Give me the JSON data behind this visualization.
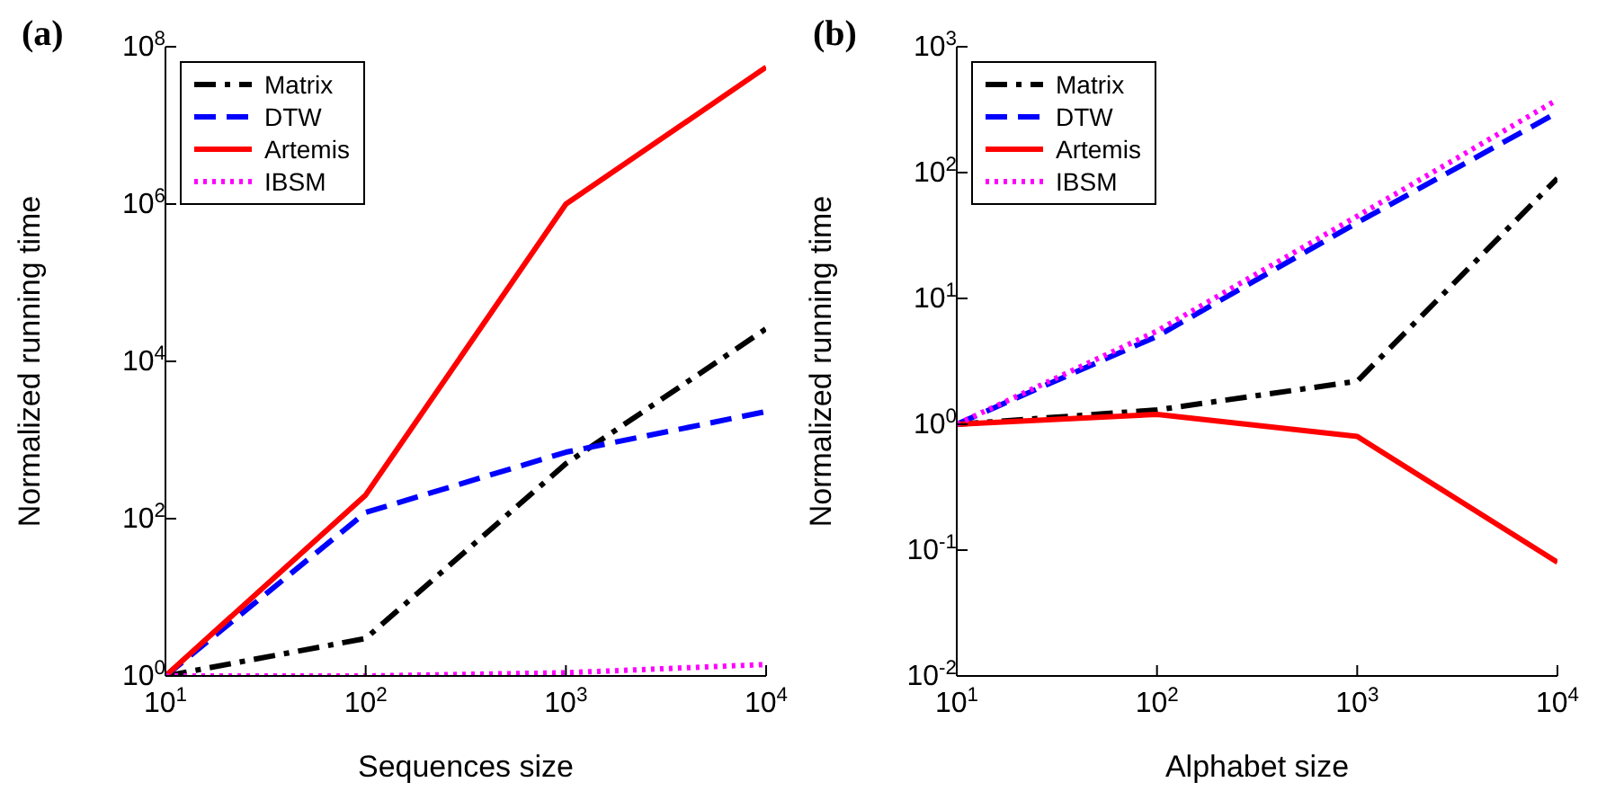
{
  "chart_data": [
    {
      "type": "line",
      "title": "(a)",
      "xlabel": "Sequences size",
      "ylabel": "Normalized running time",
      "log": "xy",
      "grid": false,
      "legend": "top left",
      "x": [
        10,
        100,
        1000,
        10000
      ],
      "xlim": [
        10,
        10000
      ],
      "xticks": [
        {
          "value": 10,
          "label": "10$^{1}$"
        },
        {
          "value": 100,
          "label": "10$^{2}$"
        },
        {
          "value": 1000,
          "label": "10$^{3}$"
        },
        {
          "value": 10000,
          "label": "10$^{4}$"
        }
      ],
      "ylim": [
        1,
        100000000
      ],
      "yticks": [
        {
          "value": 1,
          "label": "10$^{0}$"
        },
        {
          "value": 100,
          "label": "10$^{2}$"
        },
        {
          "value": 10000,
          "label": "10$^{4}$"
        },
        {
          "value": 1000000,
          "label": "10$^{6}$"
        },
        {
          "value": 100000000,
          "label": "10$^{8}$"
        }
      ],
      "series": [
        {
          "name": "Matrix",
          "color": "#000000",
          "line_style": "dashdot",
          "values": [
            1,
            3,
            500,
            26000
          ]
        },
        {
          "name": "DTW",
          "color": "#0000ff",
          "line_style": "dashed",
          "values": [
            1,
            120,
            700,
            2300
          ]
        },
        {
          "name": "Artemis",
          "color": "#ff0000",
          "line_style": "solid",
          "values": [
            1,
            200,
            1000000,
            55000000
          ]
        },
        {
          "name": "IBSM",
          "color": "#ff00ff",
          "line_style": "dotted",
          "values": [
            1,
            1,
            1.1,
            1.4
          ]
        }
      ]
    },
    {
      "type": "line",
      "title": "(b)",
      "xlabel": "Alphabet size",
      "ylabel": "Normalized running time",
      "log": "xy",
      "grid": false,
      "legend": "top left",
      "x": [
        10,
        100,
        1000,
        10000
      ],
      "xlim": [
        10,
        10000
      ],
      "xticks": [
        {
          "value": 10,
          "label": "10$^{1}$"
        },
        {
          "value": 100,
          "label": "10$^{2}$"
        },
        {
          "value": 1000,
          "label": "10$^{3}$"
        },
        {
          "value": 10000,
          "label": "10$^{4}$"
        }
      ],
      "ylim": [
        0.01,
        1000
      ],
      "yticks": [
        {
          "value": 0.01,
          "label": "10$^{-2}$"
        },
        {
          "value": 0.1,
          "label": "10$^{-1}$"
        },
        {
          "value": 1,
          "label": "10$^{0}$"
        },
        {
          "value": 10,
          "label": "10$^{1}$"
        },
        {
          "value": 100,
          "label": "10$^{2}$"
        },
        {
          "value": 1000,
          "label": "10$^{3}$"
        }
      ],
      "series": [
        {
          "name": "Matrix",
          "color": "#000000",
          "line_style": "dashdot",
          "values": [
            1,
            1.3,
            2.2,
            90
          ]
        },
        {
          "name": "DTW",
          "color": "#0000ff",
          "line_style": "dashed",
          "values": [
            1,
            5,
            40,
            300
          ]
        },
        {
          "name": "Artemis",
          "color": "#ff0000",
          "line_style": "solid",
          "values": [
            1,
            1.2,
            0.8,
            0.08
          ]
        },
        {
          "name": "IBSM",
          "color": "#ff00ff",
          "line_style": "dotted",
          "values": [
            1,
            5.5,
            45,
            380
          ]
        }
      ]
    }
  ]
}
